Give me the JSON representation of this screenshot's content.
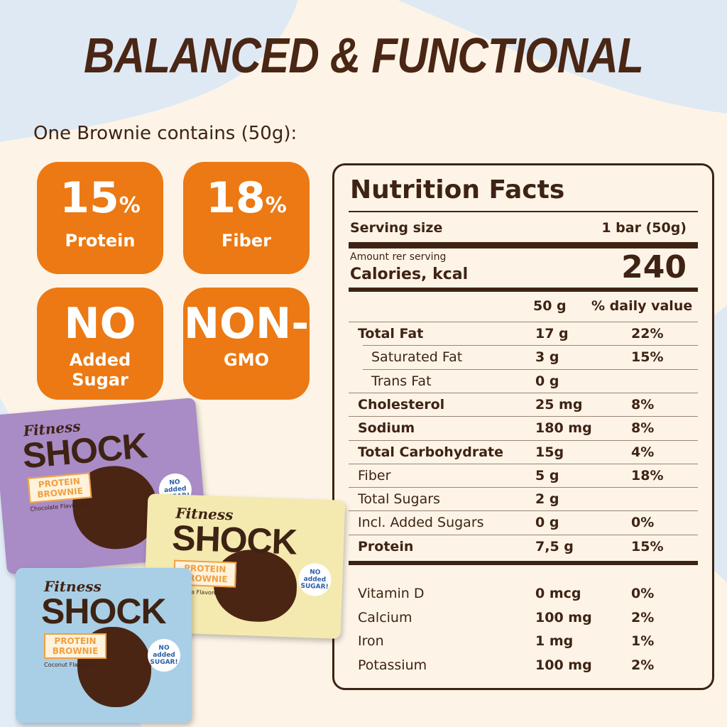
{
  "title": "BALANCED & FUNCTIONAL",
  "subtitle": "One Brownie contains (50g):",
  "badges": [
    {
      "value": "15",
      "unit": "%",
      "label": "Protein"
    },
    {
      "value": "18",
      "unit": "%",
      "label": "Fiber"
    },
    {
      "value": "NO",
      "label": "Added Sugar"
    },
    {
      "value": "NON-",
      "label": "GMO"
    }
  ],
  "nutrition": {
    "title": "Nutrition Facts",
    "serving_label": "Serving size",
    "serving_value": "1 bar (50g)",
    "amount_label": "Amount rer serving",
    "calories_label": "Calories, kcal",
    "calories": "240",
    "columns": [
      "50 g",
      "% daily value"
    ],
    "rows": [
      [
        "Total Fat",
        "17 g",
        "22%"
      ],
      [
        "Saturated Fat",
        "3 g",
        "15%"
      ],
      [
        "Trans Fat",
        "0 g"
      ],
      [
        "Cholesterol",
        "25 mg",
        "8%"
      ],
      [
        "Sodium",
        "180 mg",
        "8%"
      ],
      [
        "Total Carbohydrate",
        "15g",
        "4%"
      ],
      [
        "Fiber",
        "5 g",
        "18%"
      ],
      [
        "Total Sugars",
        "2 g"
      ],
      [
        "Incl. Added Sugars",
        "0 g",
        "0%"
      ],
      [
        "Protein",
        "7,5 g",
        "15%"
      ]
    ],
    "vitamins": [
      [
        "Vitamin D",
        "0 mcg",
        "0%"
      ],
      [
        "Calcium",
        "100 mg",
        "2%"
      ],
      [
        "Iron",
        "1 mg",
        "1%"
      ],
      [
        "Potassium",
        "100 mg",
        "2%"
      ]
    ]
  },
  "packages": [
    {
      "brand": "Fitness",
      "name": "SHOCK",
      "product": "PROTEIN BROWNIE",
      "flavor": "Chocolate Flavored",
      "claim": "NO added SUGAR!"
    },
    {
      "brand": "Fitness",
      "name": "SHOCK",
      "product": "PROTEIN BROWNIE",
      "flavor": "Banana Flavored",
      "claim": "NO added SUGAR!"
    },
    {
      "brand": "Fitness",
      "name": "SHOCK",
      "product": "PROTEIN BROWNIE",
      "flavor": "Coconut Flavored",
      "claim": "NO added SUGAR!"
    }
  ]
}
